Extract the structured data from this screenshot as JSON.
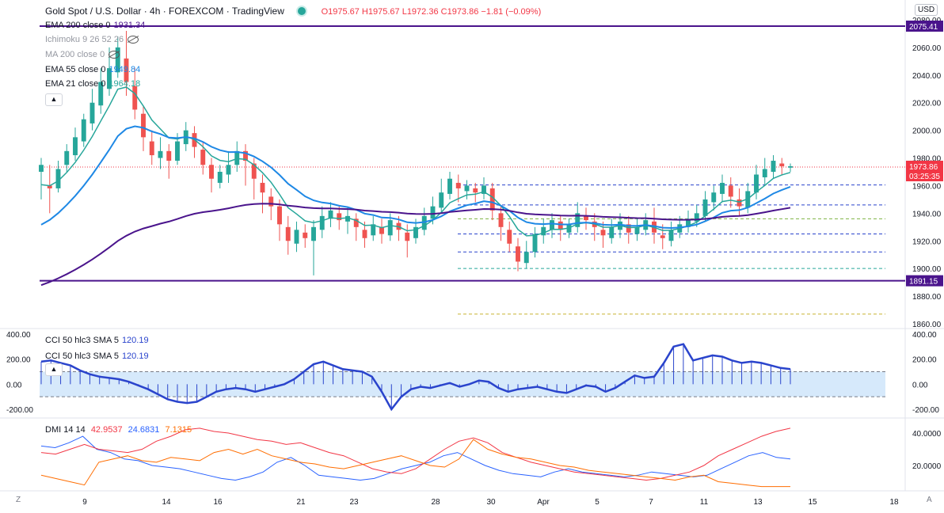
{
  "header": {
    "title": "Gold Spot / U.S. Dollar · 4h · FOREXCOM · TradingView",
    "ohlc": "O1975.67 H1975.67 L1972.36 C1973.86 −1.81 (−0.09%)"
  },
  "currency_button": "USD",
  "indicators": [
    {
      "label": "EMA 200 close 0",
      "value": "1931.34",
      "color": "#4a148c",
      "visible": true
    },
    {
      "label": "Ichimoku 9 26 52 26",
      "value": "",
      "visible": false
    },
    {
      "label": "MA 200 close 0",
      "value": "",
      "visible": false
    },
    {
      "label": "EMA 55 close 0",
      "value": "1949.84",
      "color": "#1e88e5",
      "visible": true
    },
    {
      "label": "EMA 21 close 0",
      "value": "1964.18",
      "color": "#26a69a",
      "visible": true
    }
  ],
  "cci": {
    "labels": [
      "CCI 50 hlc3 SMA 5",
      "CCI 50 hlc3 SMA 5"
    ],
    "value": "120.19",
    "color": "#2a44cc"
  },
  "dmi": {
    "label": "DMI 14 14",
    "values": [
      "42.9537",
      "24.6831",
      "7.1315"
    ],
    "colors": [
      "#f23645",
      "#2962ff",
      "#ff6d00"
    ]
  },
  "collapse_icon": "chevron-up-icon",
  "corner_left": "Z",
  "corner_right": "A",
  "price_badges": {
    "top_line": "2075.41",
    "bottom_line": "1891.15",
    "last_price": "1973.86",
    "countdown": "03:25:35"
  },
  "chart_data": {
    "type": "candlestick",
    "symbol": "XAUUSD",
    "timeframe": "4h",
    "price_axis": {
      "ticks": [
        "2080.00",
        "2060.00",
        "2040.00",
        "2020.00",
        "2000.00",
        "1980.00",
        "1960.00",
        "1940.00",
        "1920.00",
        "1900.00",
        "1880.00",
        "1860.00"
      ],
      "range": [
        1852,
        2082
      ]
    },
    "time_axis": [
      "9",
      "14",
      "16",
      "21",
      "23",
      "28",
      "30",
      "Apr",
      "5",
      "7",
      "11",
      "13",
      "15",
      "18"
    ],
    "horizontal_lines": [
      {
        "price": 2075.41,
        "style": "solid",
        "color": "#4a148c"
      },
      {
        "price": 1891.15,
        "style": "solid",
        "color": "#4a148c"
      }
    ],
    "dashed_levels": [
      1960.5,
      1946,
      1936,
      1925,
      1912,
      1900,
      1867
    ],
    "candles": [
      [
        1970,
        1975,
        1950,
        1980
      ],
      [
        1960,
        1958,
        1940,
        1975
      ],
      [
        1958,
        1972,
        1955,
        1978
      ],
      [
        1975,
        1985,
        1970,
        1990
      ],
      [
        1982,
        1995,
        1978,
        2002
      ],
      [
        1992,
        2008,
        1988,
        2012
      ],
      [
        2005,
        2020,
        2000,
        2030
      ],
      [
        2018,
        2035,
        2012,
        2045
      ],
      [
        2030,
        2045,
        2025,
        2060
      ],
      [
        2042,
        2060,
        2038,
        2068
      ],
      [
        2052,
        2035,
        2025,
        2072
      ],
      [
        2032,
        2015,
        2008,
        2045
      ],
      [
        2012,
        1995,
        1985,
        2018
      ],
      [
        1992,
        1982,
        1975,
        2000
      ],
      [
        1980,
        1985,
        1972,
        1995
      ],
      [
        1985,
        1978,
        1965,
        1990
      ],
      [
        1978,
        1992,
        1975,
        1998
      ],
      [
        1990,
        2000,
        1985,
        2006
      ],
      [
        1998,
        1988,
        1980,
        2003
      ],
      [
        1986,
        1975,
        1968,
        1992
      ],
      [
        1975,
        1965,
        1955,
        1980
      ],
      [
        1962,
        1970,
        1958,
        1975
      ],
      [
        1968,
        1975,
        1962,
        1985
      ],
      [
        1975,
        1985,
        1970,
        1992
      ],
      [
        1985,
        1978,
        1960,
        1990
      ],
      [
        1976,
        1965,
        1950,
        1980
      ],
      [
        1962,
        1955,
        1940,
        1968
      ],
      [
        1952,
        1945,
        1935,
        1958
      ],
      [
        1945,
        1932,
        1920,
        1950
      ],
      [
        1930,
        1920,
        1910,
        1938
      ],
      [
        1918,
        1928,
        1912,
        1934
      ],
      [
        1926,
        1922,
        1915,
        1932
      ],
      [
        1920,
        1930,
        1895,
        1935
      ],
      [
        1928,
        1938,
        1922,
        1945
      ],
      [
        1936,
        1942,
        1930,
        1948
      ],
      [
        1940,
        1935,
        1928,
        1946
      ],
      [
        1934,
        1938,
        1925,
        1944
      ],
      [
        1936,
        1930,
        1920,
        1940
      ],
      [
        1928,
        1922,
        1915,
        1934
      ],
      [
        1924,
        1932,
        1920,
        1938
      ],
      [
        1930,
        1925,
        1918,
        1936
      ],
      [
        1924,
        1935,
        1920,
        1940
      ],
      [
        1933,
        1928,
        1920,
        1938
      ],
      [
        1926,
        1920,
        1908,
        1932
      ],
      [
        1922,
        1930,
        1918,
        1936
      ],
      [
        1928,
        1938,
        1924,
        1944
      ],
      [
        1936,
        1945,
        1932,
        1952
      ],
      [
        1944,
        1955,
        1940,
        1965
      ],
      [
        1954,
        1965,
        1950,
        1970
      ],
      [
        1962,
        1958,
        1948,
        1968
      ],
      [
        1956,
        1960,
        1950,
        1964
      ],
      [
        1958,
        1955,
        1948,
        1962
      ],
      [
        1954,
        1960,
        1950,
        1966
      ],
      [
        1958,
        1942,
        1935,
        1962
      ],
      [
        1940,
        1930,
        1920,
        1946
      ],
      [
        1928,
        1918,
        1912,
        1934
      ],
      [
        1916,
        1905,
        1898,
        1922
      ],
      [
        1904,
        1912,
        1900,
        1920
      ],
      [
        1912,
        1925,
        1908,
        1930
      ],
      [
        1924,
        1930,
        1918,
        1936
      ],
      [
        1928,
        1935,
        1922,
        1940
      ],
      [
        1934,
        1928,
        1920,
        1938
      ],
      [
        1926,
        1932,
        1922,
        1936
      ],
      [
        1930,
        1940,
        1926,
        1948
      ],
      [
        1938,
        1935,
        1928,
        1944
      ],
      [
        1934,
        1930,
        1920,
        1940
      ],
      [
        1928,
        1924,
        1915,
        1934
      ],
      [
        1922,
        1930,
        1918,
        1936
      ],
      [
        1928,
        1934,
        1922,
        1940
      ],
      [
        1932,
        1926,
        1918,
        1938
      ],
      [
        1925,
        1930,
        1920,
        1936
      ],
      [
        1928,
        1935,
        1924,
        1940
      ],
      [
        1934,
        1926,
        1918,
        1944
      ],
      [
        1924,
        1922,
        1914,
        1932
      ],
      [
        1920,
        1928,
        1916,
        1934
      ],
      [
        1926,
        1932,
        1922,
        1938
      ],
      [
        1930,
        1936,
        1926,
        1942
      ],
      [
        1934,
        1940,
        1930,
        1946
      ],
      [
        1938,
        1950,
        1934,
        1956
      ],
      [
        1948,
        1955,
        1942,
        1960
      ],
      [
        1954,
        1962,
        1948,
        1968
      ],
      [
        1960,
        1952,
        1944,
        1966
      ],
      [
        1950,
        1945,
        1938,
        1958
      ],
      [
        1944,
        1956,
        1940,
        1962
      ],
      [
        1955,
        1968,
        1950,
        1975
      ],
      [
        1966,
        1972,
        1960,
        1980
      ],
      [
        1970,
        1978,
        1965,
        1982
      ],
      [
        1976,
        1974,
        1968,
        1980
      ],
      [
        1973,
        1974,
        1970,
        1976
      ]
    ],
    "emas": [
      {
        "name": "EMA 21",
        "color": "#26a69a",
        "last": 1964.18
      },
      {
        "name": "EMA 55",
        "color": "#1e88e5",
        "last": 1949.84
      },
      {
        "name": "EMA 200",
        "color": "#4a148c",
        "last": 1931.34
      }
    ],
    "cci_axis": [
      "400.00",
      "200.00",
      "0.00",
      "-200.00"
    ],
    "cci_values": [
      180,
      190,
      170,
      150,
      110,
      80,
      60,
      50,
      40,
      20,
      -10,
      -40,
      -80,
      -120,
      -140,
      -150,
      -140,
      -100,
      -60,
      -40,
      -30,
      -40,
      -60,
      -40,
      -20,
      0,
      40,
      100,
      160,
      180,
      150,
      120,
      110,
      100,
      60,
      -60,
      -200,
      -100,
      -40,
      -20,
      -30,
      -10,
      10,
      -20,
      0,
      30,
      20,
      -30,
      -60,
      -40,
      -30,
      -20,
      -40,
      -60,
      -70,
      -40,
      -10,
      -20,
      -60,
      -30,
      20,
      70,
      50,
      60,
      170,
      300,
      320,
      190,
      210,
      230,
      220,
      190,
      170,
      180,
      170,
      150,
      130,
      120
    ],
    "dmi_axis": [
      "40.0000",
      "20.0000"
    ],
    "dmi_series": [
      {
        "name": "+DI",
        "color": "#2962ff",
        "values": [
          32,
          31,
          34,
          38,
          30,
          28,
          24,
          23,
          20,
          19,
          18,
          16,
          14,
          12,
          11,
          13,
          16,
          22,
          25,
          20,
          14,
          13,
          12,
          11,
          12,
          15,
          18,
          20,
          22,
          26,
          28,
          24,
          20,
          17,
          15,
          14,
          13,
          16,
          18,
          16,
          15,
          14,
          13,
          14,
          16,
          15,
          14,
          13,
          14,
          18,
          22,
          26,
          28,
          25,
          24
        ]
      },
      {
        "name": "-DI",
        "color": "#f23645",
        "values": [
          28,
          27,
          30,
          33,
          30,
          29,
          28,
          30,
          35,
          38,
          42,
          43,
          41,
          40,
          38,
          36,
          35,
          33,
          34,
          31,
          28,
          26,
          22,
          18,
          16,
          15,
          18,
          24,
          30,
          35,
          37,
          34,
          28,
          25,
          22,
          20,
          18,
          16,
          15,
          14,
          13,
          12,
          11,
          12,
          14,
          16,
          20,
          26,
          30,
          34,
          38,
          41,
          43
        ]
      },
      {
        "name": "ADX",
        "color": "#ff6d00",
        "values": [
          14,
          12,
          10,
          8,
          22,
          24,
          26,
          23,
          22,
          25,
          24,
          23,
          28,
          30,
          27,
          30,
          26,
          24,
          22,
          21,
          19,
          18,
          20,
          22,
          24,
          26,
          23,
          20,
          19,
          24,
          36,
          30,
          27,
          25,
          24,
          22,
          20,
          19,
          17,
          16,
          15,
          14,
          13,
          12,
          11,
          13,
          14,
          10,
          9,
          8,
          7,
          7,
          7
        ]
      }
    ]
  }
}
